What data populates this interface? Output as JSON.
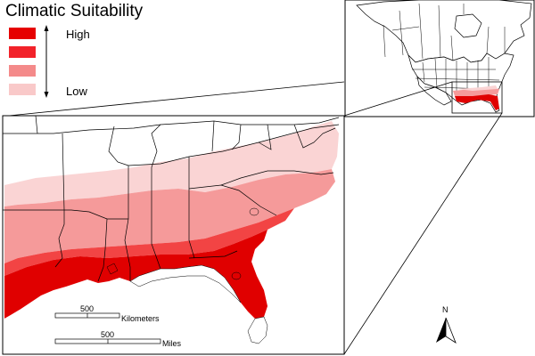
{
  "legend": {
    "title": "Climatic Suitability",
    "high_label": "High",
    "low_label": "Low",
    "classes": [
      {
        "level": 4,
        "color": "#e60000"
      },
      {
        "level": 3,
        "color": "#f2222a"
      },
      {
        "level": 2,
        "color": "#f48a8a"
      },
      {
        "level": 1,
        "color": "#f9c9c9"
      }
    ]
  },
  "scale_bars": [
    {
      "value": "500",
      "unit": "Kilometers"
    },
    {
      "value": "500",
      "unit": "Miles"
    }
  ],
  "north_arrow": {
    "label": "N"
  },
  "colors": {
    "border": "#000000",
    "zone_very_high": "#e00000",
    "zone_high": "#f24444",
    "zone_moderate": "#f59a9a",
    "zone_low": "#fad4d4",
    "background": "#ffffff"
  }
}
